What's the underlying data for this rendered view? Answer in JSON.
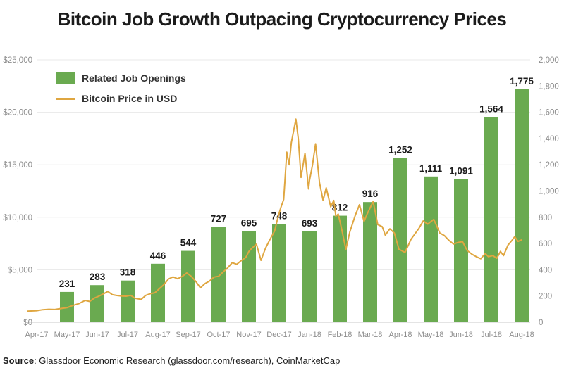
{
  "title": "Bitcoin Job Growth Outpacing Cryptocurrency Prices",
  "source": {
    "label": "Source",
    "rest": ": Glassdoor Economic Research (glassdoor.com/research), CoinMarketCap"
  },
  "legend": {
    "bar_label": "Related Job Openings",
    "line_label": "Bitcoin Price in USD"
  },
  "colors": {
    "bar": "#6aaa50",
    "line": "#dfa640",
    "grid": "#e8e8e8",
    "axis_line": "#c9c9c9",
    "axis_text": "#8d8d8d",
    "bar_label_text": "#1c1c1c"
  },
  "chart_data": {
    "type": "bar",
    "subtype": "bar+line dual-axis combo",
    "categories": [
      "Apr-17",
      "May-17",
      "Jun-17",
      "Jul-17",
      "Aug-17",
      "Sep-17",
      "Oct-17",
      "Nov-17",
      "Dec-17",
      "Jan-18",
      "Feb-18",
      "Mar-18",
      "Apr-18",
      "May-18",
      "Jun-18",
      "Jul-18",
      "Aug-18"
    ],
    "series": [
      {
        "name": "Related Job Openings",
        "type": "bar",
        "axis": "right",
        "values": [
          null,
          231,
          283,
          318,
          446,
          544,
          727,
          695,
          748,
          693,
          812,
          916,
          1252,
          1111,
          1091,
          1564,
          1775
        ],
        "value_labels": [
          "",
          "231",
          "283",
          "318",
          "446",
          "544",
          "727",
          "695",
          "748",
          "693",
          "812",
          "916",
          "1,252",
          "1,111",
          "1,091",
          "1,564",
          "1,775"
        ]
      },
      {
        "name": "Bitcoin Price in USD",
        "type": "line",
        "axis": "left",
        "points": [
          [
            -0.3,
            1050
          ],
          [
            0.0,
            1100
          ],
          [
            0.2,
            1190
          ],
          [
            0.4,
            1230
          ],
          [
            0.6,
            1210
          ],
          [
            0.8,
            1310
          ],
          [
            1.0,
            1390
          ],
          [
            1.2,
            1600
          ],
          [
            1.4,
            1780
          ],
          [
            1.6,
            2080
          ],
          [
            1.75,
            1980
          ],
          [
            1.9,
            2300
          ],
          [
            2.05,
            2480
          ],
          [
            2.2,
            2700
          ],
          [
            2.35,
            2930
          ],
          [
            2.5,
            2620
          ],
          [
            2.65,
            2550
          ],
          [
            2.8,
            2500
          ],
          [
            2.95,
            2480
          ],
          [
            3.1,
            2560
          ],
          [
            3.25,
            2280
          ],
          [
            3.45,
            2180
          ],
          [
            3.6,
            2560
          ],
          [
            3.75,
            2720
          ],
          [
            3.9,
            2810
          ],
          [
            4.05,
            3210
          ],
          [
            4.2,
            3590
          ],
          [
            4.35,
            4120
          ],
          [
            4.5,
            4320
          ],
          [
            4.65,
            4140
          ],
          [
            4.8,
            4360
          ],
          [
            4.95,
            4700
          ],
          [
            5.1,
            4380
          ],
          [
            5.25,
            3880
          ],
          [
            5.4,
            3280
          ],
          [
            5.55,
            3680
          ],
          [
            5.7,
            3920
          ],
          [
            5.85,
            4300
          ],
          [
            6.0,
            4380
          ],
          [
            6.15,
            4780
          ],
          [
            6.3,
            5180
          ],
          [
            6.45,
            5680
          ],
          [
            6.6,
            5520
          ],
          [
            6.75,
            5880
          ],
          [
            6.9,
            6180
          ],
          [
            7.0,
            6740
          ],
          [
            7.1,
            7060
          ],
          [
            7.25,
            7440
          ],
          [
            7.4,
            5900
          ],
          [
            7.55,
            7050
          ],
          [
            7.7,
            7900
          ],
          [
            7.85,
            8700
          ],
          [
            7.95,
            9900
          ],
          [
            8.05,
            10900
          ],
          [
            8.15,
            11700
          ],
          [
            8.25,
            16200
          ],
          [
            8.33,
            15000
          ],
          [
            8.4,
            17100
          ],
          [
            8.55,
            19350
          ],
          [
            8.63,
            17500
          ],
          [
            8.72,
            13800
          ],
          [
            8.85,
            16100
          ],
          [
            8.97,
            12700
          ],
          [
            9.0,
            13500
          ],
          [
            9.1,
            15000
          ],
          [
            9.2,
            17000
          ],
          [
            9.33,
            13300
          ],
          [
            9.45,
            11600
          ],
          [
            9.55,
            12800
          ],
          [
            9.7,
            11000
          ],
          [
            9.8,
            11600
          ],
          [
            9.87,
            10100
          ],
          [
            9.95,
            10300
          ],
          [
            10.05,
            9000
          ],
          [
            10.2,
            6950
          ],
          [
            10.33,
            8600
          ],
          [
            10.5,
            10100
          ],
          [
            10.65,
            11200
          ],
          [
            10.8,
            9600
          ],
          [
            10.9,
            10300
          ],
          [
            11.1,
            11500
          ],
          [
            11.25,
            9300
          ],
          [
            11.4,
            9100
          ],
          [
            11.5,
            8300
          ],
          [
            11.65,
            8900
          ],
          [
            11.8,
            8500
          ],
          [
            11.95,
            6950
          ],
          [
            12.15,
            6650
          ],
          [
            12.35,
            7900
          ],
          [
            12.6,
            8900
          ],
          [
            12.75,
            9650
          ],
          [
            12.9,
            9350
          ],
          [
            13.1,
            9800
          ],
          [
            13.3,
            8500
          ],
          [
            13.45,
            8250
          ],
          [
            13.6,
            7800
          ],
          [
            13.75,
            7450
          ],
          [
            13.9,
            7600
          ],
          [
            14.05,
            7680
          ],
          [
            14.2,
            6840
          ],
          [
            14.35,
            6500
          ],
          [
            14.5,
            6250
          ],
          [
            14.65,
            6050
          ],
          [
            14.8,
            6550
          ],
          [
            14.9,
            6250
          ],
          [
            15.05,
            6350
          ],
          [
            15.18,
            6100
          ],
          [
            15.3,
            6750
          ],
          [
            15.4,
            6350
          ],
          [
            15.55,
            7350
          ],
          [
            15.68,
            7800
          ],
          [
            15.77,
            8150
          ],
          [
            15.88,
            7700
          ],
          [
            16.0,
            7850
          ]
        ]
      }
    ],
    "left_axis": {
      "title": "Bitcoin Price in USD",
      "min": 0,
      "max": 25000,
      "tick_values": [
        25000,
        20000,
        15000,
        10000,
        5000,
        0
      ],
      "tick_labels": [
        "$25,000",
        "$20,000",
        "$15,000",
        "$10,000",
        "$5,000",
        "$0"
      ]
    },
    "right_axis": {
      "title": "Related Job Openings",
      "min": 0,
      "max": 2000,
      "tick_values": [
        2000,
        1800,
        1600,
        1400,
        1200,
        1000,
        800,
        600,
        400,
        200,
        0
      ],
      "tick_labels": [
        "2,000",
        "1,800",
        "1,600",
        "1,400",
        "1,200",
        "1,000",
        "800",
        "600",
        "400",
        "200",
        "0"
      ]
    },
    "grid": "horizontal lines at $5,000 / 400-opening intervals",
    "legend_position": "top-left inside plot"
  }
}
